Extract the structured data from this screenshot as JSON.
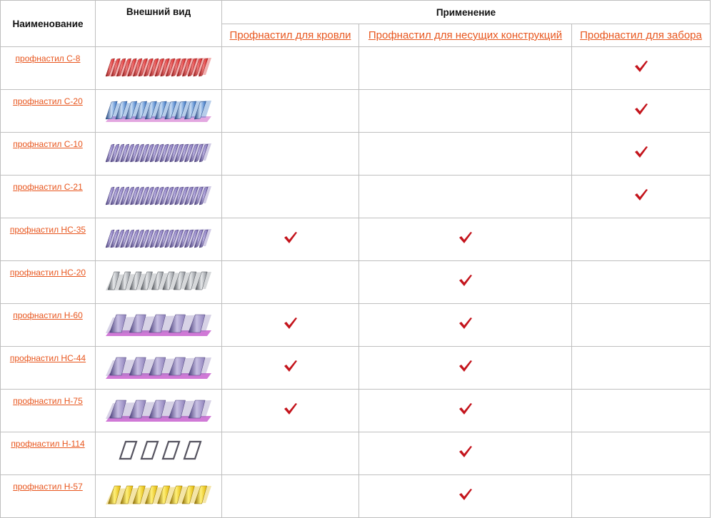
{
  "header": {
    "col_name": "Наименование",
    "col_view": "Внешний вид",
    "col_application": "Применение",
    "sub": [
      "Профнастил для кровли",
      "Профнастил для несущих конструкций",
      "Профнастил для забора"
    ]
  },
  "colors": {
    "link": "#e8561e",
    "check": "#c4141c",
    "border": "#bfbfbf"
  },
  "rows": [
    {
      "name": "профнастил С-8",
      "icon": "profile-sheet-red-icon",
      "roof": false,
      "load": false,
      "fence": true
    },
    {
      "name": "профнастил С-20",
      "icon": "profile-sheet-blue-icon",
      "roof": false,
      "load": false,
      "fence": true
    },
    {
      "name": "профнастил С-10",
      "icon": "profile-sheet-purple-icon",
      "roof": false,
      "load": false,
      "fence": true
    },
    {
      "name": "профнастил С-21",
      "icon": "profile-sheet-purple-icon",
      "roof": false,
      "load": false,
      "fence": true
    },
    {
      "name": "профнастил НС-35",
      "icon": "profile-sheet-purple-icon",
      "roof": true,
      "load": true,
      "fence": false
    },
    {
      "name": "профнастил НС-20",
      "icon": "profile-sheet-grey-icon",
      "roof": false,
      "load": true,
      "fence": false
    },
    {
      "name": "профнастил Н-60",
      "icon": "profile-sheet-trapezoid-icon",
      "roof": true,
      "load": true,
      "fence": false
    },
    {
      "name": "профнастил НС-44",
      "icon": "profile-sheet-trapezoid-icon",
      "roof": true,
      "load": true,
      "fence": false
    },
    {
      "name": "профнастил Н-75",
      "icon": "profile-sheet-trapezoid-icon",
      "roof": true,
      "load": true,
      "fence": false
    },
    {
      "name": "профнастил Н-114",
      "icon": "profile-sheet-deep-icon",
      "roof": false,
      "load": true,
      "fence": false
    },
    {
      "name": "профнастил Н-57",
      "icon": "profile-sheet-yellow-icon",
      "roof": false,
      "load": true,
      "fence": false
    }
  ]
}
